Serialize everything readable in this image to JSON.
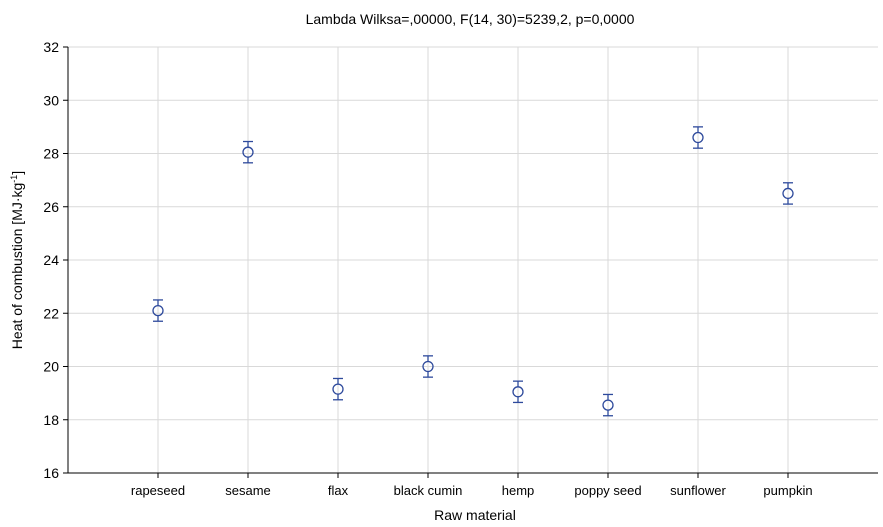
{
  "chart_data": {
    "type": "scatter",
    "title": "Lambda Wilksa=,00000, F(14, 30)=5239,2, p=0,0000",
    "xlabel": "Raw material",
    "ylabel_main": "Heat of combustion [MJ·kg",
    "ylabel_sup": "-1",
    "ylabel_end": "]",
    "ylim": [
      16,
      32
    ],
    "yticks": [
      16,
      18,
      20,
      22,
      24,
      26,
      28,
      30,
      32
    ],
    "grid": true,
    "point_color": "#2e4a9c",
    "categories": [
      "rapeseed",
      "sesame",
      "flax",
      "black cumin",
      "hemp",
      "poppy seed",
      "sunflower",
      "pumpkin"
    ],
    "values": [
      22.1,
      28.05,
      19.15,
      20.0,
      19.05,
      18.55,
      28.6,
      26.5
    ],
    "error_low": [
      21.7,
      27.65,
      18.75,
      19.6,
      18.65,
      18.15,
      28.2,
      26.1
    ],
    "error_high": [
      22.5,
      28.45,
      19.55,
      20.4,
      19.45,
      18.95,
      29.0,
      26.9
    ]
  }
}
